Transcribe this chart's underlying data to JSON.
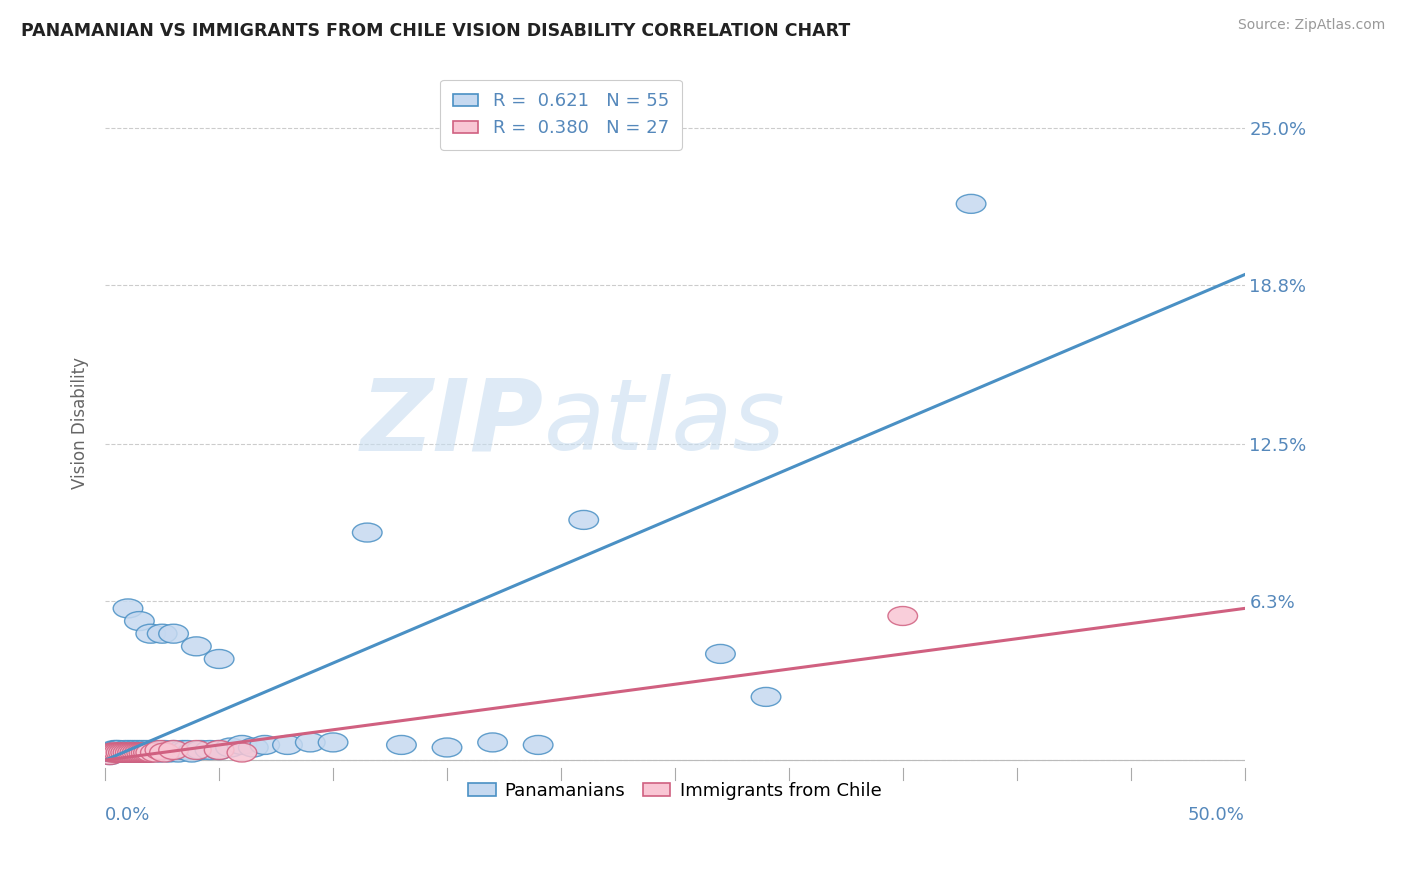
{
  "title": "PANAMANIAN VS IMMIGRANTS FROM CHILE VISION DISABILITY CORRELATION CHART",
  "source": "Source: ZipAtlas.com",
  "ylabel": "Vision Disability",
  "xmin": 0.0,
  "xmax": 0.5,
  "ymin": -0.003,
  "ymax": 0.27,
  "yticks": [
    0.0,
    0.063,
    0.125,
    0.188,
    0.25
  ],
  "ytick_labels": [
    "",
    "6.3%",
    "12.5%",
    "18.8%",
    "25.0%"
  ],
  "blue_R": "0.621",
  "blue_N": "55",
  "pink_R": "0.380",
  "pink_N": "27",
  "blue_fill": "#c6d9f0",
  "pink_fill": "#f9c6d4",
  "blue_edge": "#4a90c4",
  "pink_edge": "#d06080",
  "blue_line": "#4a90c4",
  "pink_line": "#d06080",
  "axis_label_color": "#5588bb",
  "legend_label_blue": "Panamanians",
  "legend_label_pink": "Immigrants from Chile",
  "blue_line_x0": 0.0,
  "blue_line_y0": 0.0,
  "blue_line_x1": 0.5,
  "blue_line_y1": 0.192,
  "pink_line_x0": 0.0,
  "pink_line_y0": 0.0,
  "pink_line_x1": 0.5,
  "pink_line_y1": 0.06,
  "blue_scatter_x": [
    0.002,
    0.003,
    0.004,
    0.005,
    0.005,
    0.006,
    0.007,
    0.008,
    0.009,
    0.01,
    0.011,
    0.012,
    0.013,
    0.014,
    0.015,
    0.016,
    0.017,
    0.018,
    0.019,
    0.02,
    0.022,
    0.024,
    0.026,
    0.028,
    0.03,
    0.032,
    0.034,
    0.036,
    0.038,
    0.042,
    0.046,
    0.05,
    0.055,
    0.06,
    0.065,
    0.07,
    0.08,
    0.09,
    0.1,
    0.115,
    0.13,
    0.15,
    0.17,
    0.19,
    0.21,
    0.01,
    0.015,
    0.02,
    0.025,
    0.03,
    0.04,
    0.05,
    0.27,
    0.38,
    0.29
  ],
  "blue_scatter_y": [
    0.002,
    0.003,
    0.004,
    0.004,
    0.003,
    0.004,
    0.003,
    0.003,
    0.004,
    0.003,
    0.004,
    0.003,
    0.004,
    0.003,
    0.004,
    0.003,
    0.004,
    0.003,
    0.004,
    0.003,
    0.004,
    0.003,
    0.004,
    0.003,
    0.004,
    0.003,
    0.004,
    0.004,
    0.003,
    0.004,
    0.004,
    0.004,
    0.005,
    0.006,
    0.005,
    0.006,
    0.006,
    0.007,
    0.007,
    0.09,
    0.006,
    0.005,
    0.007,
    0.006,
    0.095,
    0.06,
    0.055,
    0.05,
    0.05,
    0.05,
    0.045,
    0.04,
    0.042,
    0.22,
    0.025
  ],
  "pink_scatter_x": [
    0.002,
    0.003,
    0.004,
    0.005,
    0.006,
    0.007,
    0.008,
    0.009,
    0.01,
    0.011,
    0.012,
    0.013,
    0.014,
    0.015,
    0.016,
    0.017,
    0.018,
    0.019,
    0.02,
    0.022,
    0.024,
    0.026,
    0.03,
    0.04,
    0.05,
    0.06,
    0.35
  ],
  "pink_scatter_y": [
    0.002,
    0.003,
    0.003,
    0.003,
    0.003,
    0.003,
    0.003,
    0.003,
    0.003,
    0.003,
    0.003,
    0.003,
    0.003,
    0.003,
    0.003,
    0.003,
    0.003,
    0.003,
    0.003,
    0.003,
    0.004,
    0.003,
    0.004,
    0.004,
    0.004,
    0.003,
    0.057
  ]
}
